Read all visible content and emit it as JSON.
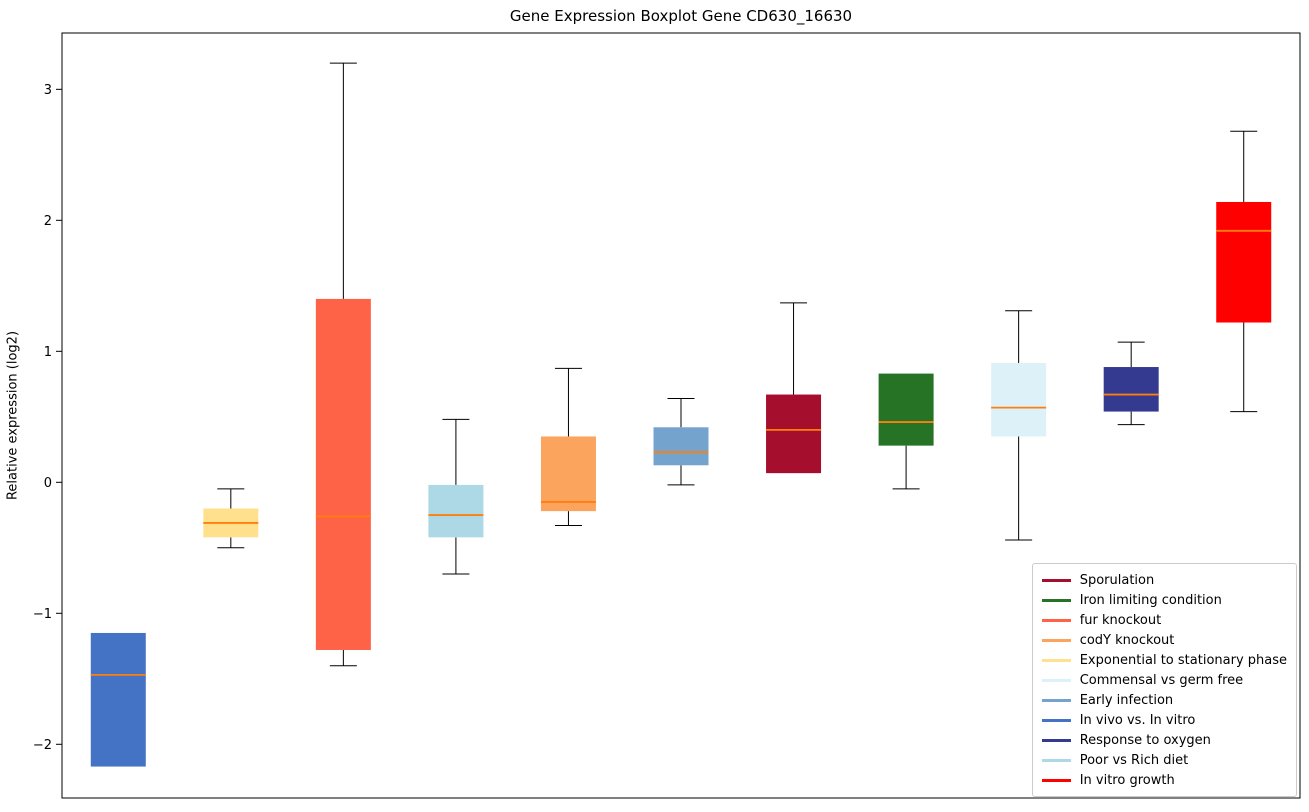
{
  "chart_data": {
    "type": "boxplot",
    "title": "Gene Expression Boxplot Gene CD630_16630",
    "ylabel": "Relative expression (log2)",
    "ylim": [
      -2.41,
      3.43
    ],
    "yticks": [
      -2,
      -1,
      0,
      1,
      2,
      3
    ],
    "grid": false,
    "median_color": "#ff7f0e",
    "whisker_color": "#000000",
    "legend_position": "lower right",
    "series": [
      {
        "name": "In vivo vs. In vitro",
        "color": "#4472C4",
        "whislo": -2.17,
        "q1": -2.17,
        "med": -1.47,
        "q3": -1.15,
        "whishi": -1.15
      },
      {
        "name": "Exponential to stationary phase",
        "color": "#FFE08C",
        "whislo": -0.5,
        "q1": -0.42,
        "med": -0.31,
        "q3": -0.2,
        "whishi": -0.05
      },
      {
        "name": "fur knockout",
        "color": "#FF6347",
        "whislo": -1.4,
        "q1": -1.28,
        "med": -0.26,
        "q3": 1.4,
        "whishi": 3.2
      },
      {
        "name": "Poor vs Rich diet",
        "color": "#ADD8E6",
        "whislo": -0.7,
        "q1": -0.42,
        "med": -0.25,
        "q3": -0.02,
        "whishi": 0.48
      },
      {
        "name": "codY knockout",
        "color": "#FBA45D",
        "whislo": -0.33,
        "q1": -0.22,
        "med": -0.15,
        "q3": 0.35,
        "whishi": 0.87
      },
      {
        "name": "Early infection",
        "color": "#74A4CE",
        "whislo": -0.02,
        "q1": 0.13,
        "med": 0.23,
        "q3": 0.42,
        "whishi": 0.64
      },
      {
        "name": "Sporulation",
        "color": "#A50E2D",
        "whislo": 0.07,
        "q1": 0.07,
        "med": 0.4,
        "q3": 0.67,
        "whishi": 1.37
      },
      {
        "name": "Iron limiting condition",
        "color": "#267326",
        "whislo": -0.05,
        "q1": 0.28,
        "med": 0.46,
        "q3": 0.83,
        "whishi": 0.83
      },
      {
        "name": "Commensal vs germ free",
        "color": "#DDF1F8",
        "whislo": -0.44,
        "q1": 0.35,
        "med": 0.57,
        "q3": 0.91,
        "whishi": 1.31
      },
      {
        "name": "Response to oxygen",
        "color": "#343A90",
        "whislo": 0.44,
        "q1": 0.54,
        "med": 0.67,
        "q3": 0.88,
        "whishi": 1.07
      },
      {
        "name": "In vitro growth",
        "color": "#FF0000",
        "whislo": 0.54,
        "q1": 1.22,
        "med": 1.92,
        "q3": 2.14,
        "whishi": 2.68
      }
    ],
    "legend_order": [
      "Sporulation",
      "Iron limiting condition",
      "fur knockout",
      "codY knockout",
      "Exponential to stationary phase",
      "Commensal vs germ free",
      "Early infection",
      "In vivo vs. In vitro",
      "Response to oxygen",
      "Poor vs Rich diet",
      "In vitro growth"
    ]
  }
}
